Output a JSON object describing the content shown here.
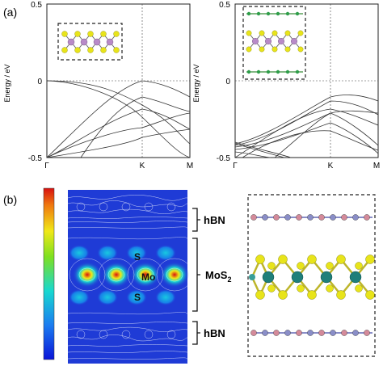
{
  "panel_a": {
    "label": "(a)",
    "ylabel": "Energy / eV",
    "left_plot": {
      "y_ticks": [
        "0.5",
        "0",
        "-0.5"
      ],
      "x_ticks": [
        "Γ",
        "K",
        "M"
      ]
    },
    "right_plot": {
      "y_ticks": [
        "0.5",
        "0",
        "-0.5"
      ],
      "x_ticks": [
        "Γ",
        "K",
        "M"
      ]
    }
  },
  "panel_b": {
    "label": "(b)",
    "atom_labels": {
      "s_top": "S",
      "mo": "Mo",
      "s_bottom": "S"
    },
    "layer_labels": {
      "hbn_top": "hBN",
      "mos2_main": "MoS",
      "mos2_sub": "2",
      "hbn_bottom": "hBN"
    }
  },
  "colors": {
    "mo_atom": "#1f7f7a",
    "s_atom": "#e8e41a",
    "b_atom": "#d48a9a",
    "n_atom": "#8a8ec8",
    "map_background": "#1f3bd6"
  },
  "chart_data": [
    {
      "type": "line",
      "title": "",
      "xlabel": "",
      "ylabel": "Energy / eV",
      "x_ticks": [
        "Γ",
        "K",
        "M"
      ],
      "ylim": [
        -0.5,
        0.5
      ],
      "series": [
        {
          "x": [
            0,
            0.15,
            0.3,
            0.45,
            0.6,
            0.7,
            0.85,
            1.0
          ],
          "values": [
            -0.5,
            -0.38,
            -0.22,
            -0.1,
            -0.02,
            0.0,
            -0.04,
            -0.1
          ]
        },
        {
          "x": [
            0,
            0.2,
            0.4,
            0.55,
            0.7,
            0.85,
            1.0
          ],
          "values": [
            -0.5,
            -0.33,
            -0.18,
            -0.24,
            -0.38,
            -0.45,
            -0.5
          ]
        },
        {
          "x": [
            0,
            0.1,
            0.25,
            0.45,
            0.6,
            0.7
          ],
          "values": [
            0.0,
            -0.01,
            -0.04,
            -0.1,
            -0.18,
            -0.24
          ]
        }
      ]
    },
    {
      "type": "line",
      "title": "",
      "xlabel": "",
      "ylabel": "Energy / eV",
      "x_ticks": [
        "Γ",
        "K",
        "M"
      ],
      "ylim": [
        -0.5,
        0.5
      ],
      "series": [
        {
          "x": [
            0,
            0.2,
            0.4,
            0.55,
            0.7,
            0.85,
            1.0
          ],
          "values": [
            -0.45,
            -0.35,
            -0.2,
            -0.12,
            -0.06,
            -0.12,
            -0.22
          ]
        },
        {
          "x": [
            0,
            0.2,
            0.4,
            0.55,
            0.7,
            0.85,
            1.0
          ],
          "values": [
            -0.42,
            -0.4,
            -0.3,
            -0.28,
            -0.2,
            -0.3,
            -0.42
          ]
        }
      ]
    }
  ]
}
